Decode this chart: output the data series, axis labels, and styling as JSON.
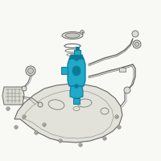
{
  "bg_color": "#f8f8f5",
  "line_color": "#666666",
  "line_color2": "#888888",
  "highlight_color": "#1eaac8",
  "highlight_dark": "#0e7a96",
  "highlight_mid": "#16a0be",
  "figsize": [
    2.0,
    2.0
  ],
  "dpi": 100,
  "tank_color": "#e2e2da",
  "tank_edge": "#666666",
  "part_gray": "#c8c8c0",
  "part_light": "#dcdcd4"
}
